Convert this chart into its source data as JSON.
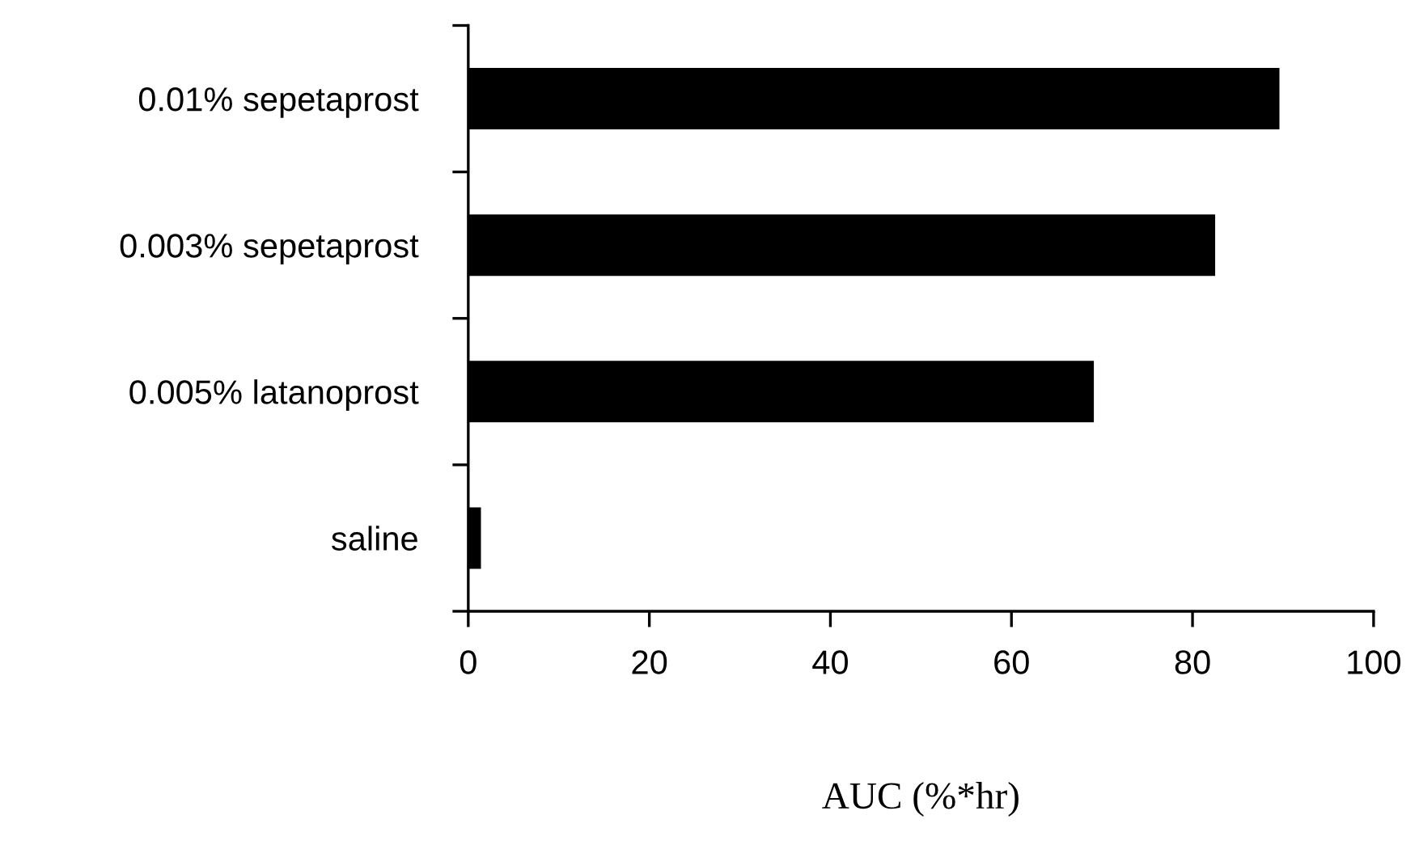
{
  "chart_data": {
    "type": "bar",
    "orientation": "horizontal",
    "xlabel": "AUC (%*hr)",
    "categories": [
      "0.01% sepetaprost",
      "0.003% sepetaprost",
      "0.005% latanoprost",
      "saline"
    ],
    "values": [
      89.6,
      82.5,
      69.1,
      1.4
    ],
    "color": "#000000",
    "xlim": [
      0,
      100
    ],
    "xticks": [
      0,
      20,
      40,
      60,
      80,
      100
    ],
    "grid": false,
    "legend": false
  }
}
